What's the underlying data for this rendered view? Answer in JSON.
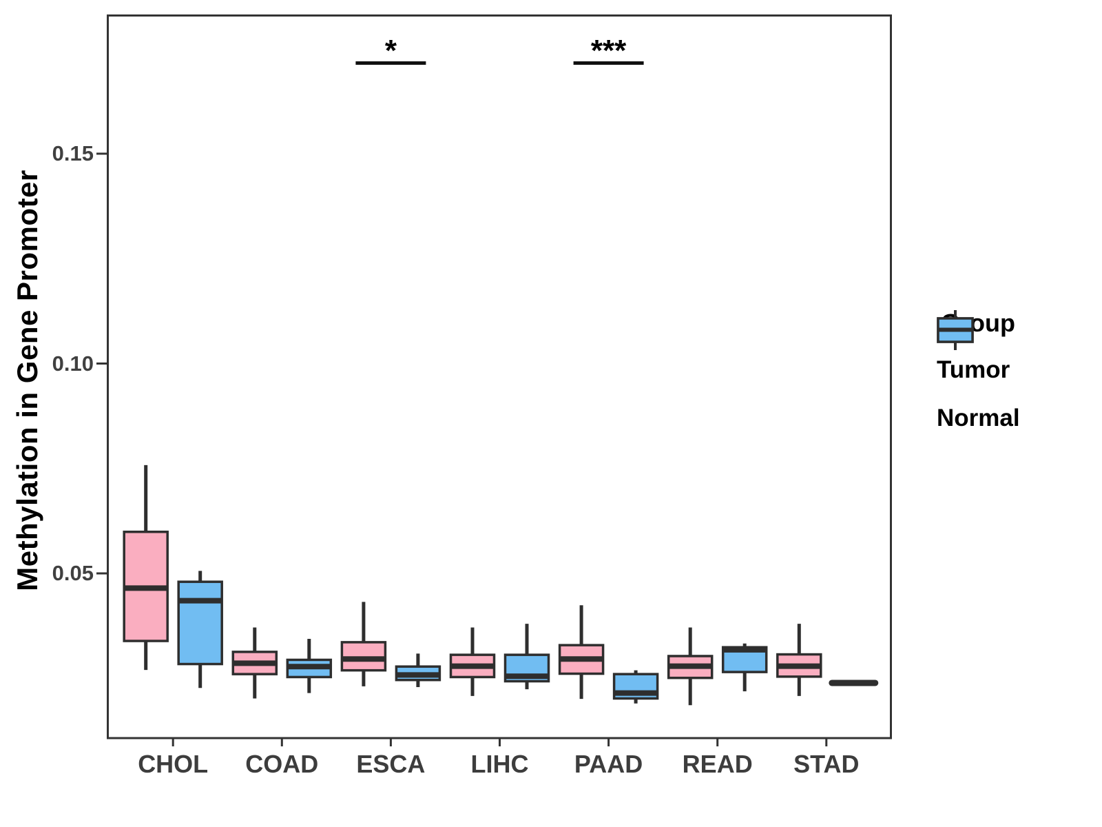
{
  "y_axis": {
    "title": "Methylation in Gene Promoter",
    "tick_labels": [
      "0.05",
      "0.10",
      "0.15"
    ],
    "tick_values": [
      0.05,
      0.1,
      0.15
    ]
  },
  "x_axis": {
    "categories": [
      "CHOL",
      "COAD",
      "ESCA",
      "LIHC",
      "PAAD",
      "READ",
      "STAD"
    ]
  },
  "legend": {
    "title": "Group",
    "items": [
      {
        "label": "Tumor",
        "fill": "#FAAEC0"
      },
      {
        "label": "Normal",
        "fill": "#71BDF2"
      }
    ]
  },
  "colors": {
    "tumor_fill": "#FAAEC0",
    "normal_fill": "#71BDF2",
    "box_stroke": "#2E2E2E",
    "panel_border": "#333333",
    "tick_text": "#404040",
    "annotation": "#000000"
  },
  "chart_data": {
    "type": "boxplot",
    "orientation": "vertical",
    "grouping": "dodged",
    "title": "",
    "xlabel": "",
    "ylabel": "Methylation in Gene Promoter",
    "categories": [
      "CHOL",
      "COAD",
      "ESCA",
      "LIHC",
      "PAAD",
      "READ",
      "STAD"
    ],
    "ylim": [
      0.011,
      0.183
    ],
    "yticks": [
      0.05,
      0.1,
      0.15
    ],
    "grid": false,
    "legend_position": "right",
    "series": [
      {
        "name": "Tumor",
        "fill": "#FAAEC0",
        "boxes": [
          {
            "category": "CHOL",
            "whisker_low": 0.027,
            "q1": 0.0339,
            "median": 0.0465,
            "q3": 0.0599,
            "whisker_high": 0.0758
          },
          {
            "category": "COAD",
            "whisker_low": 0.0202,
            "q1": 0.026,
            "median": 0.0286,
            "q3": 0.0313,
            "whisker_high": 0.0371
          },
          {
            "category": "ESCA",
            "whisker_low": 0.0231,
            "q1": 0.0269,
            "median": 0.0296,
            "q3": 0.0336,
            "whisker_high": 0.0432
          },
          {
            "category": "LIHC",
            "whisker_low": 0.0208,
            "q1": 0.0253,
            "median": 0.0279,
            "q3": 0.0306,
            "whisker_high": 0.0371
          },
          {
            "category": "PAAD",
            "whisker_low": 0.0201,
            "q1": 0.0261,
            "median": 0.0296,
            "q3": 0.0329,
            "whisker_high": 0.0424
          },
          {
            "category": "READ",
            "whisker_low": 0.0186,
            "q1": 0.0251,
            "median": 0.0279,
            "q3": 0.0303,
            "whisker_high": 0.0371
          },
          {
            "category": "STAD",
            "whisker_low": 0.0208,
            "q1": 0.0254,
            "median": 0.0279,
            "q3": 0.0307,
            "whisker_high": 0.038
          }
        ]
      },
      {
        "name": "Normal",
        "fill": "#71BDF2",
        "boxes": [
          {
            "category": "CHOL",
            "whisker_low": 0.0227,
            "q1": 0.0284,
            "median": 0.0435,
            "q3": 0.048,
            "whisker_high": 0.0506
          },
          {
            "category": "COAD",
            "whisker_low": 0.0215,
            "q1": 0.0253,
            "median": 0.0278,
            "q3": 0.0294,
            "whisker_high": 0.0344
          },
          {
            "category": "ESCA",
            "whisker_low": 0.0229,
            "q1": 0.0246,
            "median": 0.0258,
            "q3": 0.0278,
            "whisker_high": 0.0309
          },
          {
            "category": "LIHC",
            "whisker_low": 0.0224,
            "q1": 0.0243,
            "median": 0.0255,
            "q3": 0.0306,
            "whisker_high": 0.038
          },
          {
            "category": "PAAD",
            "whisker_low": 0.019,
            "q1": 0.0202,
            "median": 0.0215,
            "q3": 0.026,
            "whisker_high": 0.0269
          },
          {
            "category": "READ",
            "whisker_low": 0.0219,
            "q1": 0.0265,
            "median": 0.0318,
            "q3": 0.0324,
            "whisker_high": 0.0333
          },
          {
            "category": "STAD",
            "whisker_low": 0.0239,
            "q1": 0.0239,
            "median": 0.0239,
            "q3": 0.0239,
            "whisker_high": 0.0239
          }
        ]
      }
    ],
    "significance_annotations": [
      {
        "category": "ESCA",
        "label": "*",
        "comparison": "Tumor vs Normal"
      },
      {
        "category": "PAAD",
        "label": "***",
        "comparison": "Tumor vs Normal"
      }
    ]
  }
}
